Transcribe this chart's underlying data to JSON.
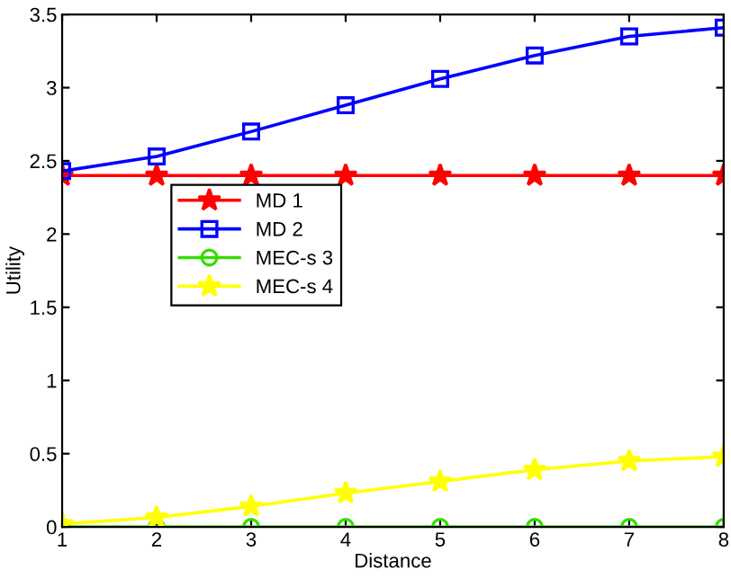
{
  "chart_data": {
    "type": "line",
    "xlabel": "Distance",
    "ylabel": "Utility",
    "x": [
      1,
      2,
      3,
      4,
      5,
      6,
      7,
      8
    ],
    "series": [
      {
        "name": "MD 1",
        "color": "#ff0000",
        "marker": "star",
        "values": [
          2.4,
          2.4,
          2.4,
          2.4,
          2.4,
          2.4,
          2.4,
          2.4
        ]
      },
      {
        "name": "MD 2",
        "color": "#0000ff",
        "marker": "square",
        "values": [
          2.43,
          2.53,
          2.7,
          2.88,
          3.06,
          3.22,
          3.35,
          3.41
        ]
      },
      {
        "name": "MEC-s 3",
        "color": "#33dd00",
        "marker": "circle",
        "values": [
          0,
          0,
          0,
          0,
          0,
          0,
          0,
          0
        ]
      },
      {
        "name": "MEC-s 4",
        "color": "#ffff00",
        "marker": "star",
        "values": [
          0.02,
          0.065,
          0.14,
          0.23,
          0.31,
          0.39,
          0.45,
          0.48
        ]
      }
    ],
    "xlim": [
      1,
      8
    ],
    "xticks": [
      1,
      2,
      3,
      4,
      5,
      6,
      7,
      8
    ],
    "ylim": [
      0,
      3.5
    ],
    "yticks": [
      0,
      0.5,
      1,
      1.5,
      2,
      2.5,
      3,
      3.5
    ],
    "grid": false,
    "legend": "center left",
    "line_style": "solid"
  }
}
